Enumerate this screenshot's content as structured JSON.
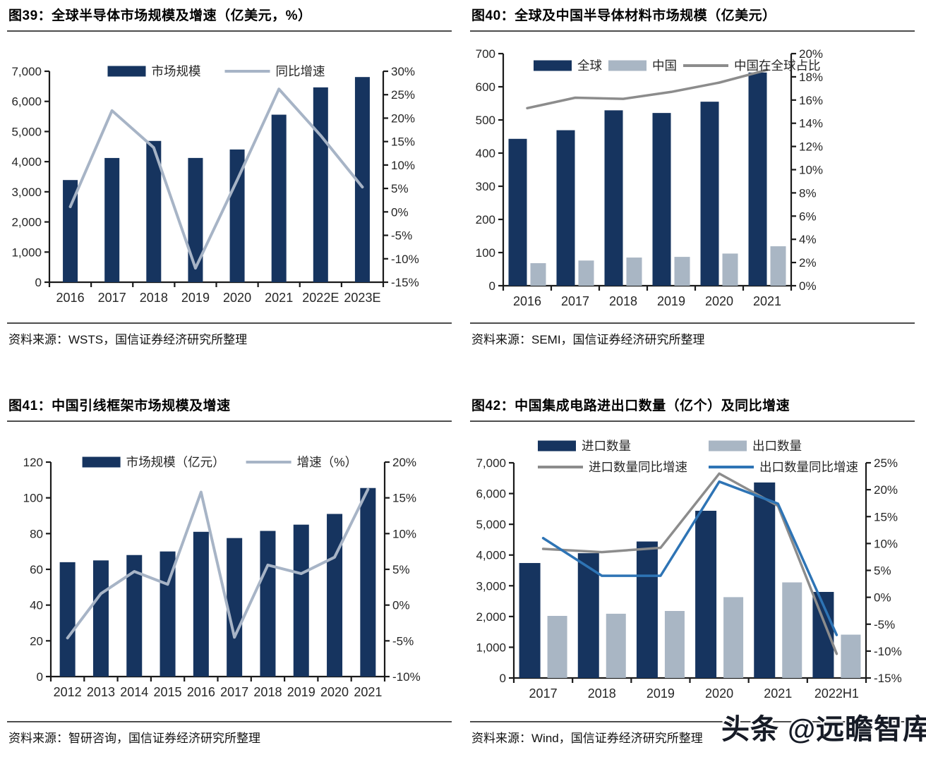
{
  "page": {
    "background": "#ffffff",
    "watermark": "头条 @远瞻智库"
  },
  "colors": {
    "navy": "#16345f",
    "gray_bar": "#a9b6c4",
    "soft_line": "#a7b4c6",
    "gray_line": "#8c8c8c",
    "blue_line": "#2e74b5",
    "axis": "#1a1a1a"
  },
  "chart_data": [
    {
      "id": "fig39",
      "type": "bar",
      "title": "图39：全球半导体市场规模及增速（亿美元，%）",
      "source": "资料来源：WSTS，国信证券经济研究所整理",
      "categories": [
        "2016",
        "2017",
        "2018",
        "2019",
        "2020",
        "2021",
        "2022E",
        "2023E"
      ],
      "bar_series": [
        {
          "name": "市场规模",
          "color_key": "navy",
          "values": [
            3390,
            4122,
            4688,
            4123,
            4404,
            5559,
            6465,
            6808
          ]
        }
      ],
      "line_series": [
        {
          "name": "同比增速",
          "color_key": "soft_line",
          "values": [
            1.1,
            21.6,
            13.7,
            -12.0,
            6.8,
            26.2,
            16.3,
            5.3
          ]
        }
      ],
      "left_axis": {
        "min": 0,
        "max": 7000,
        "step": 1000,
        "format": "thousands"
      },
      "right_axis": {
        "min": -15,
        "max": 30,
        "step": 5,
        "format": "percent"
      },
      "grid": false,
      "legend_position": "top-center"
    },
    {
      "id": "fig40",
      "type": "bar",
      "title": "图40：全球及中国半导体材料市场规模（亿美元）",
      "source": "资料来源：SEMI，国信证券经济研究所整理",
      "categories": [
        "2016",
        "2017",
        "2018",
        "2019",
        "2020",
        "2021"
      ],
      "bar_series": [
        {
          "name": "全球",
          "color_key": "navy",
          "values": [
            443,
            469,
            529,
            521,
            555,
            643
          ]
        },
        {
          "name": "中国",
          "color_key": "gray_bar",
          "values": [
            68,
            76,
            85,
            87,
            97,
            119
          ]
        }
      ],
      "line_series": [
        {
          "name": "中国在全球占比",
          "color_key": "gray_line",
          "values": [
            15.3,
            16.2,
            16.1,
            16.7,
            17.5,
            18.6
          ]
        }
      ],
      "left_axis": {
        "min": 0,
        "max": 700,
        "step": 100,
        "format": "plain"
      },
      "right_axis": {
        "min": 0,
        "max": 20,
        "step": 2,
        "format": "percent"
      },
      "grid": false,
      "legend_position": "top-left"
    },
    {
      "id": "fig41",
      "type": "bar",
      "title": "图41：中国引线框架市场规模及增速",
      "source": "资料来源：智研咨询，国信证券经济研究所整理",
      "categories": [
        "2012",
        "2013",
        "2014",
        "2015",
        "2016",
        "2017",
        "2018",
        "2019",
        "2020",
        "2021"
      ],
      "bar_series": [
        {
          "name": "市场规模（亿元）",
          "color_key": "navy",
          "values": [
            64,
            65,
            68,
            70,
            81,
            77.5,
            81.5,
            85,
            91,
            105.5
          ]
        }
      ],
      "line_series": [
        {
          "name": "增速（%）",
          "color_key": "soft_line",
          "values": [
            -4.6,
            1.6,
            4.7,
            2.9,
            15.8,
            -4.5,
            5.6,
            4.4,
            6.7,
            16.2
          ]
        }
      ],
      "left_axis": {
        "min": 0,
        "max": 120,
        "step": 20,
        "format": "plain"
      },
      "right_axis": {
        "min": -10,
        "max": 20,
        "step": 5,
        "format": "percent"
      },
      "grid": false,
      "legend_position": "top-center"
    },
    {
      "id": "fig42",
      "type": "bar",
      "title": "图42：中国集成电路进出口数量（亿个）及同比增速",
      "source": "资料来源：Wind，国信证券经济研究所整理",
      "categories": [
        "2017",
        "2018",
        "2019",
        "2020",
        "2021",
        "2022H1"
      ],
      "bar_series": [
        {
          "name": "进口数量",
          "color_key": "navy",
          "values": [
            3740,
            4060,
            4440,
            5440,
            6360,
            2800
          ]
        },
        {
          "name": "出口数量",
          "color_key": "gray_bar",
          "values": [
            2020,
            2090,
            2180,
            2630,
            3110,
            1410
          ]
        }
      ],
      "line_series": [
        {
          "name": "进口数量同比增速",
          "color_key": "gray_line",
          "values": [
            9.0,
            8.4,
            9.2,
            23.0,
            17.0,
            -10.5
          ]
        },
        {
          "name": "出口数量同比增速",
          "color_key": "blue_line",
          "values": [
            11.0,
            4.0,
            4.0,
            21.5,
            17.4,
            -7.0
          ]
        }
      ],
      "left_axis": {
        "min": 0,
        "max": 7000,
        "step": 1000,
        "format": "thousands"
      },
      "right_axis": {
        "min": -15,
        "max": 25,
        "step": 5,
        "format": "percent"
      },
      "grid": false,
      "legend_position": "top-left-2col"
    }
  ]
}
